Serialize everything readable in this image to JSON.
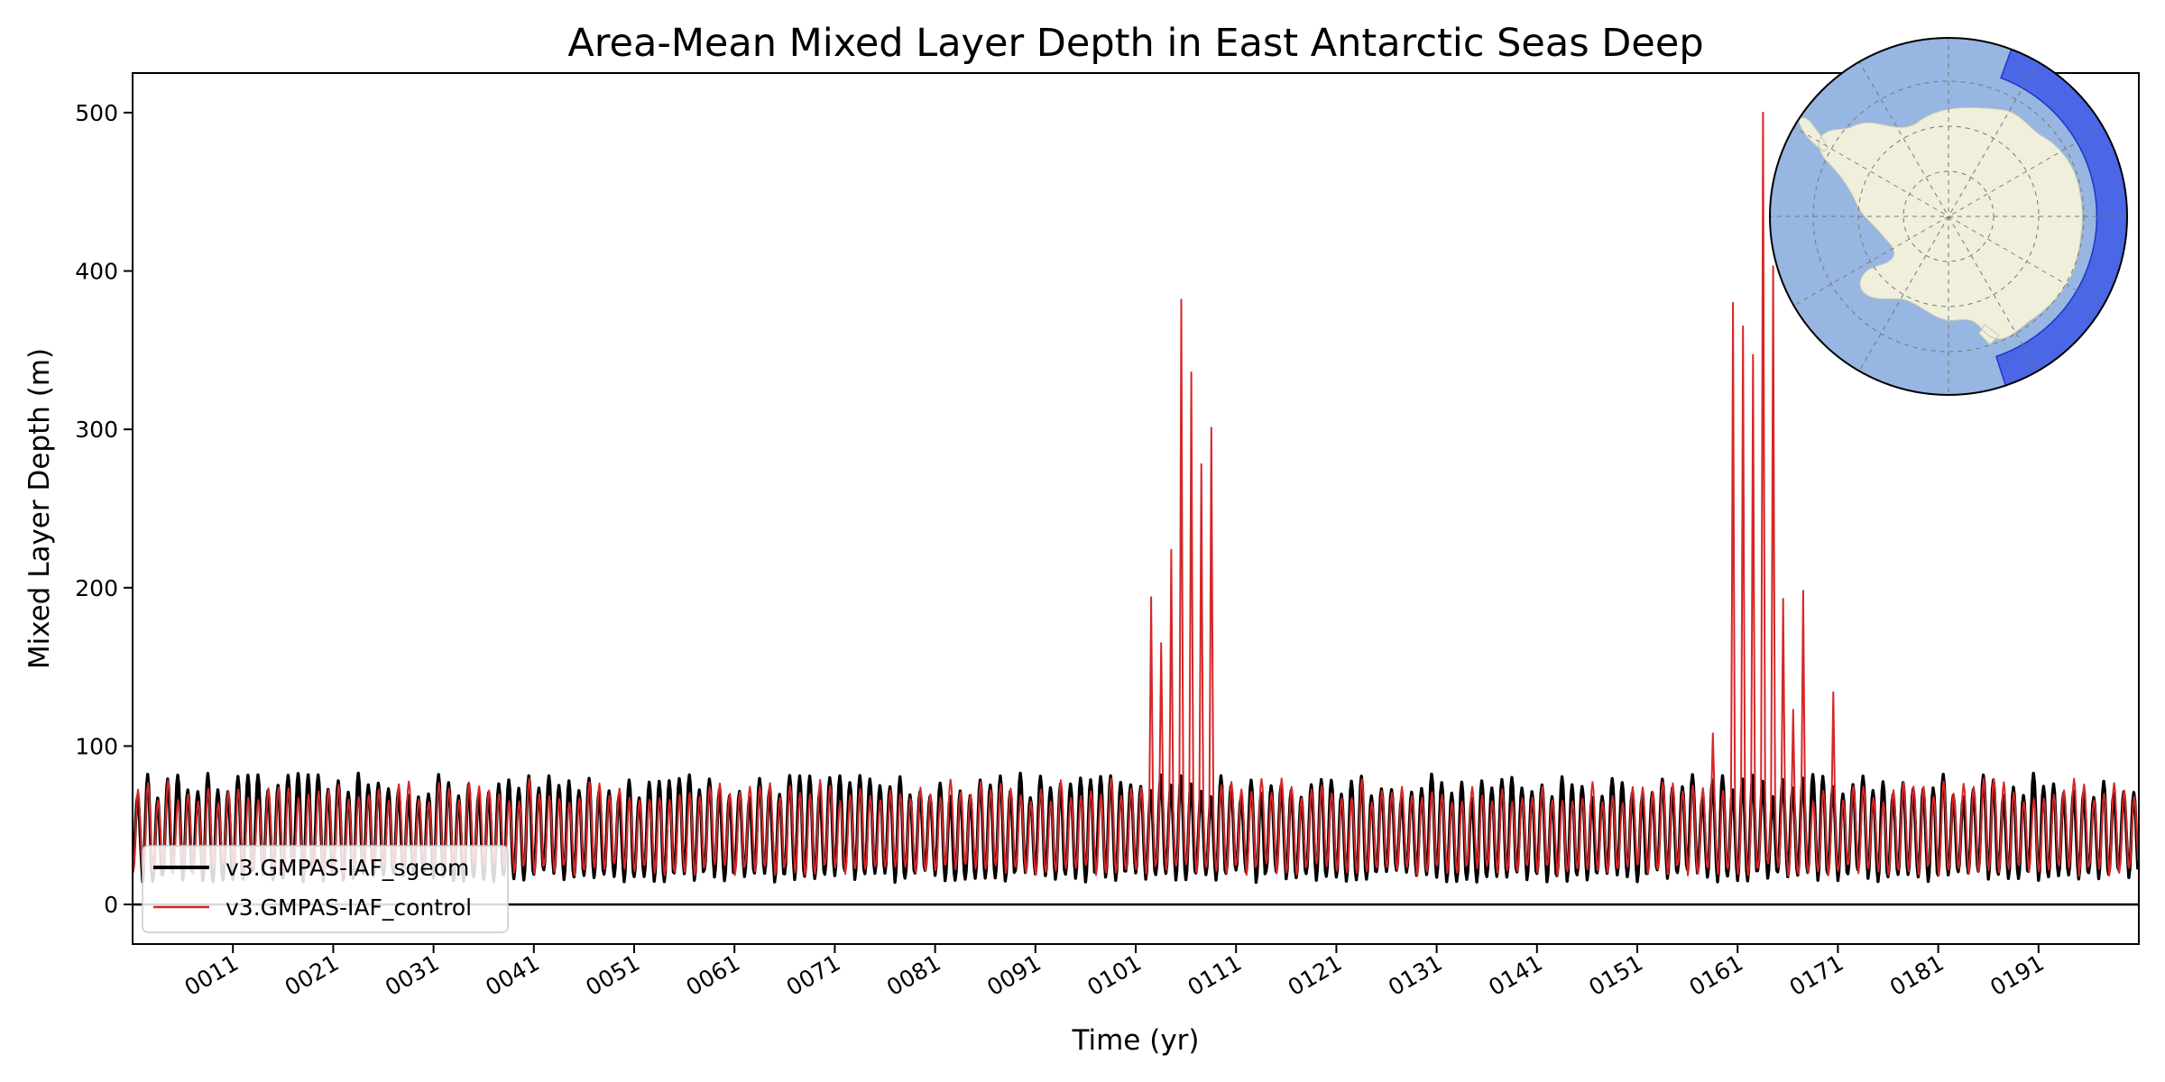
{
  "chart_data": {
    "type": "line",
    "title": "Area-Mean Mixed Layer Depth in East Antarctic Seas Deep",
    "xlabel": "Time (yr)",
    "ylabel": "Mixed Layer Depth (m)",
    "xlim": [
      1,
      201
    ],
    "ylim": [
      -25,
      525
    ],
    "x_ticks": [
      11,
      21,
      31,
      41,
      51,
      61,
      71,
      81,
      91,
      101,
      111,
      121,
      131,
      141,
      151,
      161,
      171,
      181,
      191
    ],
    "x_tick_labels": [
      "0011",
      "0021",
      "0031",
      "0041",
      "0051",
      "0061",
      "0071",
      "0081",
      "0091",
      "0101",
      "0111",
      "0121",
      "0131",
      "0141",
      "0151",
      "0161",
      "0171",
      "0181",
      "0191"
    ],
    "y_ticks": [
      0,
      100,
      200,
      300,
      400,
      500
    ],
    "y_tick_labels": [
      "0",
      "100",
      "200",
      "300",
      "400",
      "500"
    ],
    "reference_line_y": 0,
    "grid": false,
    "legend_position": "lower-left",
    "series": [
      {
        "name": "v3.GMPAS-IAF_sgeom",
        "color": "#000000",
        "seasonal_cycle": {
          "typical_max": 75,
          "typical_min": 18,
          "period_years": 1
        }
      },
      {
        "name": "v3.GMPAS-IAF_control",
        "color": "#d62728",
        "seasonal_cycle": {
          "typical_max": 72,
          "typical_min": 22,
          "period_years": 1
        },
        "peaks": [
          {
            "year": 102.0,
            "value": 194
          },
          {
            "year": 103.0,
            "value": 165
          },
          {
            "year": 104.0,
            "value": 224
          },
          {
            "year": 105.0,
            "value": 382
          },
          {
            "year": 106.0,
            "value": 336
          },
          {
            "year": 107.0,
            "value": 278
          },
          {
            "year": 108.0,
            "value": 301
          },
          {
            "year": 111.4,
            "value": 92
          },
          {
            "year": 158.0,
            "value": 108
          },
          {
            "year": 160.0,
            "value": 380
          },
          {
            "year": 161.0,
            "value": 365
          },
          {
            "year": 162.0,
            "value": 347
          },
          {
            "year": 163.0,
            "value": 500
          },
          {
            "year": 164.0,
            "value": 403
          },
          {
            "year": 165.0,
            "value": 193
          },
          {
            "year": 166.0,
            "value": 123
          },
          {
            "year": 167.0,
            "value": 198
          },
          {
            "year": 170.0,
            "value": 134
          }
        ]
      }
    ]
  },
  "inset_map": {
    "ocean_color": "#97b6e1",
    "land_color": "#efefdb",
    "region_color": "#3b55e6"
  }
}
